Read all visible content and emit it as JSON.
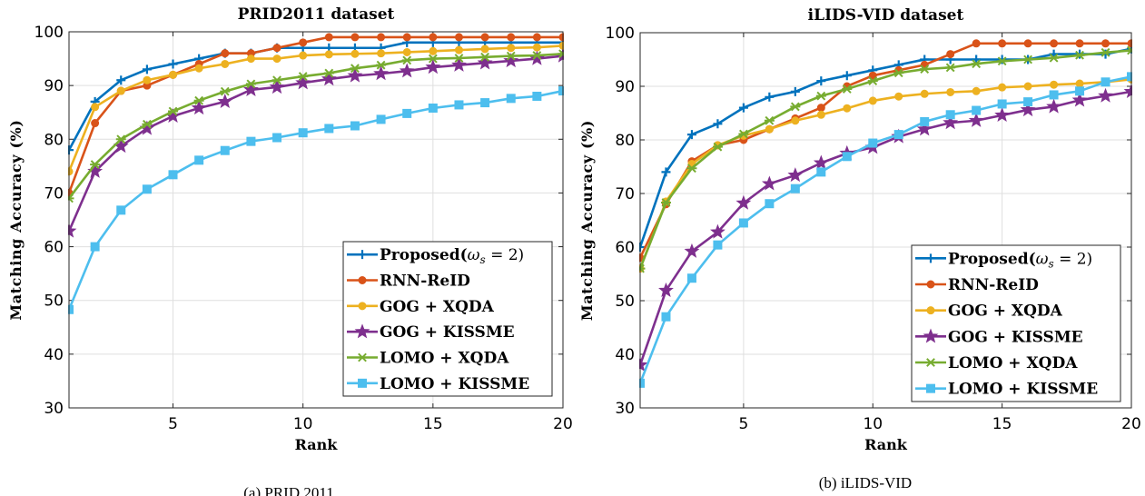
{
  "captions": [
    "(a) PRID 2011",
    "(b) iLIDS-VID"
  ],
  "colors": {
    "Proposed": "#0072BD",
    "RNN-ReID": "#D95319",
    "GOG + XQDA": "#EDB120",
    "GOG + KISSME": "#7E2F8E",
    "LOMO + XQDA": "#77AC30",
    "LOMO + KISSME": "#4DBEEE"
  },
  "chart_data": [
    {
      "type": "line",
      "title": "PRID2011 dataset",
      "xlabel": "Rank",
      "ylabel": "Matching Accuracy (%)",
      "xlim": [
        1,
        20
      ],
      "ylim": [
        30,
        100
      ],
      "xticks": [
        5,
        10,
        15,
        20
      ],
      "yticks": [
        30,
        40,
        50,
        60,
        70,
        80,
        90,
        100
      ],
      "grid": true,
      "legend_position": "bottom-right",
      "x": [
        1,
        2,
        3,
        4,
        5,
        6,
        7,
        8,
        9,
        10,
        11,
        12,
        13,
        14,
        15,
        16,
        17,
        18,
        19,
        20
      ],
      "series": [
        {
          "name": "Proposed(ω_s = 2)",
          "marker": "plus",
          "color_key": "Proposed",
          "values": [
            78,
            87,
            91,
            93,
            94,
            95,
            96,
            96,
            97,
            97,
            97,
            97,
            97,
            98,
            98,
            98,
            98,
            98,
            98,
            98
          ]
        },
        {
          "name": "RNN-ReID",
          "marker": "circle",
          "color_key": "RNN-ReID",
          "values": [
            70,
            83,
            89,
            90,
            92,
            94,
            96,
            96,
            97,
            98,
            99,
            99,
            99,
            99,
            99,
            99,
            99,
            99,
            99,
            99
          ]
        },
        {
          "name": "GOG + XQDA",
          "marker": "circle",
          "color_key": "GOG + XQDA",
          "values": [
            74,
            86,
            89,
            91,
            92,
            93.2,
            94,
            95,
            95,
            95.6,
            95.8,
            95.9,
            96,
            96.2,
            96.4,
            96.6,
            96.8,
            97,
            97.1,
            97.4
          ]
        },
        {
          "name": "GOG + KISSME",
          "marker": "star",
          "color_key": "GOG + KISSME",
          "values": [
            62.9,
            74,
            78.7,
            82,
            84.3,
            85.8,
            87,
            89.2,
            89.7,
            90.5,
            91.2,
            91.8,
            92.2,
            92.7,
            93.4,
            93.8,
            94.2,
            94.6,
            95,
            95.5
          ]
        },
        {
          "name": "LOMO + XQDA",
          "marker": "x",
          "color_key": "LOMO + XQDA",
          "values": [
            69,
            75.3,
            80,
            82.8,
            85.2,
            87.2,
            88.9,
            90.3,
            91,
            91.7,
            92.3,
            93.2,
            93.8,
            94.7,
            95,
            95.1,
            95.3,
            95.5,
            95.6,
            95.9
          ]
        },
        {
          "name": "LOMO + KISSME",
          "marker": "square",
          "color_key": "LOMO + KISSME",
          "values": [
            48.3,
            60,
            66.8,
            70.7,
            73.4,
            76.1,
            77.9,
            79.6,
            80.3,
            81.2,
            82,
            82.5,
            83.7,
            84.8,
            85.8,
            86.4,
            86.8,
            87.6,
            88,
            89
          ]
        }
      ]
    },
    {
      "type": "line",
      "title": "iLIDS-VID dataset",
      "xlabel": "Rank",
      "ylabel": "Matching Accuracy (%)",
      "xlim": [
        1,
        20
      ],
      "ylim": [
        30,
        100
      ],
      "xticks": [
        5,
        10,
        15,
        20
      ],
      "yticks": [
        30,
        40,
        50,
        60,
        70,
        80,
        90,
        100
      ],
      "grid": true,
      "legend_position": "bottom-right",
      "x": [
        1,
        2,
        3,
        4,
        5,
        6,
        7,
        8,
        9,
        10,
        11,
        12,
        13,
        14,
        15,
        16,
        17,
        18,
        19,
        20
      ],
      "series": [
        {
          "name": "Proposed(ω_s = 2)",
          "marker": "plus",
          "color_key": "Proposed",
          "values": [
            60,
            74,
            81,
            83,
            86,
            88,
            89,
            91,
            92,
            93,
            94,
            95,
            95,
            95,
            95,
            95,
            96,
            96,
            96,
            97
          ]
        },
        {
          "name": "RNN-ReID",
          "marker": "circle",
          "color_key": "RNN-ReID",
          "values": [
            58,
            68,
            76,
            79,
            80,
            82,
            84,
            86,
            90,
            92,
            93,
            94,
            96,
            98,
            98,
            98,
            98,
            98,
            98,
            98
          ]
        },
        {
          "name": "GOG + XQDA",
          "marker": "circle",
          "color_key": "GOG + XQDA",
          "values": [
            56,
            68.5,
            75.5,
            79,
            80.8,
            82,
            83.6,
            84.7,
            85.9,
            87.3,
            88.1,
            88.6,
            88.9,
            89.1,
            89.8,
            90,
            90.3,
            90.5,
            90.8,
            91.3
          ]
        },
        {
          "name": "GOG + KISSME",
          "marker": "star",
          "color_key": "GOG + KISSME",
          "values": [
            38,
            51.9,
            59.2,
            62.8,
            68.2,
            71.8,
            73.4,
            75.7,
            77.5,
            78.6,
            80.6,
            82,
            83.2,
            83.6,
            84.6,
            85.6,
            86.2,
            87.4,
            88.2,
            89
          ]
        },
        {
          "name": "LOMO + XQDA",
          "marker": "x",
          "color_key": "LOMO + XQDA",
          "values": [
            56,
            68.3,
            74.7,
            78.7,
            81.1,
            83.6,
            86.2,
            88.2,
            89.5,
            91,
            92.5,
            93.2,
            93.5,
            94.2,
            94.7,
            95,
            95.3,
            95.8,
            96.3,
            96.7
          ]
        },
        {
          "name": "LOMO + KISSME",
          "marker": "square",
          "color_key": "LOMO + KISSME",
          "values": [
            34.6,
            47,
            54.2,
            60.4,
            64.5,
            68.1,
            70.9,
            74,
            76.9,
            79.4,
            81,
            83.4,
            84.7,
            85.5,
            86.7,
            87.1,
            88.4,
            89.1,
            90.8,
            91.8
          ]
        }
      ]
    }
  ]
}
